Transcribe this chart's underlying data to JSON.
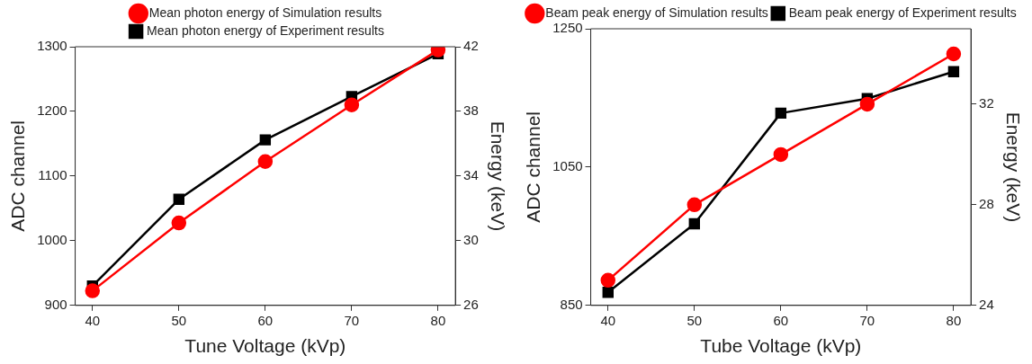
{
  "chart_data": [
    {
      "type": "line",
      "xlabel": "Tune Voltage (kVp)",
      "ylabel": "ADC channel",
      "y2label": "Energy (keV)",
      "x": [
        40,
        50,
        60,
        70,
        80
      ],
      "xlim": [
        38,
        82
      ],
      "xticks": [
        40,
        50,
        60,
        70,
        80
      ],
      "ylim": [
        900,
        1300
      ],
      "yticks": [
        900,
        1000,
        1100,
        1200,
        1300
      ],
      "y2lim": [
        26,
        42
      ],
      "y2ticks": [
        26,
        30,
        34,
        38,
        42
      ],
      "grid": false,
      "legend": "top",
      "line_style": "solid",
      "series": [
        {
          "name": "Mean photon energy of Experiment results",
          "color": "#000000",
          "marker": "square",
          "values": [
            930,
            1064,
            1156,
            1223,
            1289
          ]
        },
        {
          "name": "Mean photon energy of Simulation results",
          "color": "#ff0000",
          "marker": "circle",
          "axis": "y2",
          "values": [
            26.9,
            31.1,
            34.9,
            38.4,
            41.8
          ]
        }
      ]
    },
    {
      "type": "line",
      "xlabel": "Tube Voltage (kVp)",
      "ylabel": "ADC channel",
      "y2label": "Energy (keV)",
      "x": [
        40,
        50,
        60,
        70,
        80
      ],
      "xlim": [
        38,
        82
      ],
      "xticks": [
        40,
        50,
        60,
        70,
        80
      ],
      "ylim": [
        850,
        1250
      ],
      "yticks": [
        850,
        1050,
        1250
      ],
      "y2lim": [
        24,
        35
      ],
      "y2ticks": [
        24,
        28,
        32
      ],
      "grid": false,
      "legend": "top",
      "line_style": "solid",
      "series": [
        {
          "name": "Beam peak energy of Experiment results",
          "color": "#000000",
          "marker": "square",
          "values": [
            869,
            968,
            1128,
            1149,
            1188
          ]
        },
        {
          "name": "Beam peak energy of Simulation results",
          "color": "#ff0000",
          "marker": "circle",
          "axis": "y2",
          "values": [
            25.0,
            28.0,
            30.0,
            32.0,
            34.0
          ]
        }
      ]
    }
  ]
}
